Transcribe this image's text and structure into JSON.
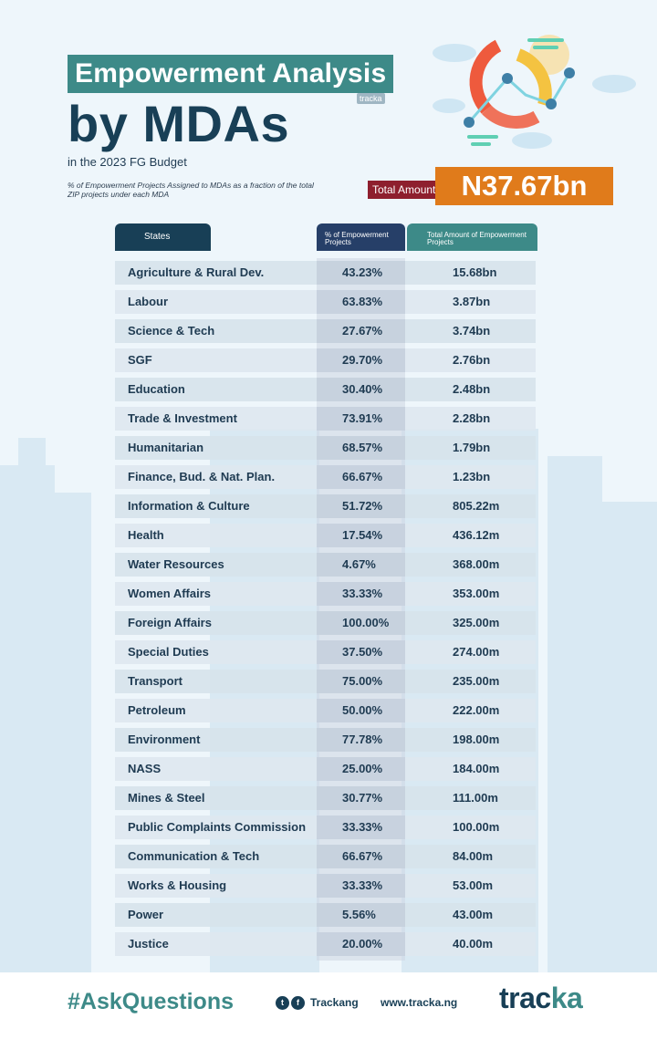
{
  "header": {
    "title_line1": "Empowerment Analysis",
    "title_line2": "by MDAs",
    "mini_brand": "tracka",
    "subtitle": "in the 2023 FG Budget",
    "note": "% of Empowerment Projects Assigned to MDAs as a fraction of the total ZIP projects under each MDA",
    "total_label": "Total Amount",
    "total_value": "N37.67bn"
  },
  "chart_data": {
    "type": "table",
    "columns": [
      "States",
      "% of Empowerment Projects",
      "Total Amount of Empowerment Projects"
    ],
    "rows": [
      {
        "name": "Agriculture & Rural Dev.",
        "pct": "43.23%",
        "amount": "15.68bn"
      },
      {
        "name": "Labour",
        "pct": "63.83%",
        "amount": "3.87bn"
      },
      {
        "name": "Science & Tech",
        "pct": "27.67%",
        "amount": "3.74bn"
      },
      {
        "name": "SGF",
        "pct": "29.70%",
        "amount": "2.76bn"
      },
      {
        "name": "Education",
        "pct": "30.40%",
        "amount": "2.48bn"
      },
      {
        "name": "Trade & Investment",
        "pct": "73.91%",
        "amount": "2.28bn"
      },
      {
        "name": "Humanitarian",
        "pct": "68.57%",
        "amount": "1.79bn"
      },
      {
        "name": "Finance, Bud. & Nat. Plan.",
        "pct": "66.67%",
        "amount": "1.23bn"
      },
      {
        "name": "Information & Culture",
        "pct": "51.72%",
        "amount": "805.22m"
      },
      {
        "name": "Health",
        "pct": "17.54%",
        "amount": "436.12m"
      },
      {
        "name": "Water Resources",
        "pct": "4.67%",
        "amount": "368.00m"
      },
      {
        "name": "Women Affairs",
        "pct": "33.33%",
        "amount": "353.00m"
      },
      {
        "name": "Foreign Affairs",
        "pct": "100.00%",
        "amount": "325.00m"
      },
      {
        "name": "Special Duties",
        "pct": "37.50%",
        "amount": "274.00m"
      },
      {
        "name": "Transport",
        "pct": "75.00%",
        "amount": "235.00m"
      },
      {
        "name": "Petroleum",
        "pct": "50.00%",
        "amount": "222.00m"
      },
      {
        "name": "Environment",
        "pct": "77.78%",
        "amount": "198.00m"
      },
      {
        "name": "NASS",
        "pct": "25.00%",
        "amount": "184.00m"
      },
      {
        "name": "Mines & Steel",
        "pct": "30.77%",
        "amount": "111.00m"
      },
      {
        "name": "Public Complaints Commission",
        "pct": "33.33%",
        "amount": "100.00m"
      },
      {
        "name": "Communication & Tech",
        "pct": "66.67%",
        "amount": "84.00m"
      },
      {
        "name": "Works & Housing",
        "pct": "33.33%",
        "amount": "53.00m"
      },
      {
        "name": "Power",
        "pct": "5.56%",
        "amount": "43.00m"
      },
      {
        "name": "Justice",
        "pct": "20.00%",
        "amount": "40.00m"
      }
    ]
  },
  "footer": {
    "hashtag": "#AskQuestions",
    "social_handle": "Trackang",
    "website": "www.tracka.ng",
    "brand_part1": "trac",
    "brand_part2": "ka"
  },
  "colors": {
    "teal": "#3d8a88",
    "navy": "#183f56",
    "indigo": "#263f68",
    "maroon": "#8e1f2e",
    "orange": "#e07b1b"
  }
}
